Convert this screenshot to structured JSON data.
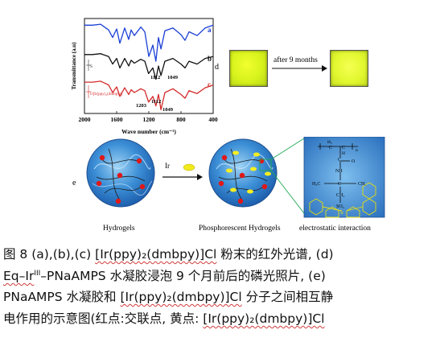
{
  "ir_chart": {
    "ylabel": "Transmittance (a.u)",
    "xlabel": "Wave number (cm⁻¹)",
    "x_ticks": [
      "2000",
      "1600",
      "1200",
      "800",
      "400"
    ],
    "curve_labels": [
      "a",
      "b",
      "c"
    ],
    "peak_labels": [
      "1112",
      "1049",
      "1203",
      "1112",
      "1049"
    ],
    "colors": {
      "a": "#1a3fd6",
      "b": "#111111",
      "c": "#d42a2a"
    },
    "structure_label_b": "S",
    "structure_label_c": "O[Ir(ppy)₂(dmbpy)]"
  },
  "chart_data": {
    "type": "line",
    "title": "",
    "xlabel": "Wave number (cm⁻¹)",
    "ylabel": "Transmittance (a.u)",
    "xlim": [
      2000,
      400
    ],
    "series": [
      {
        "name": "a",
        "x": [
          2000,
          1900,
          1800,
          1700,
          1650,
          1600,
          1560,
          1500,
          1450,
          1420,
          1380,
          1300,
          1250,
          1200,
          1150,
          1112,
          1080,
          1049,
          1000,
          900,
          800,
          750,
          700,
          600,
          500,
          400
        ],
        "y": [
          0.93,
          0.93,
          0.94,
          0.88,
          0.8,
          0.89,
          0.74,
          0.9,
          0.78,
          0.88,
          0.82,
          0.91,
          0.86,
          0.6,
          0.72,
          0.55,
          0.8,
          0.68,
          0.87,
          0.9,
          0.83,
          0.77,
          0.86,
          0.82,
          0.9,
          0.93
        ]
      },
      {
        "name": "b",
        "x": [
          2000,
          1900,
          1800,
          1700,
          1650,
          1600,
          1560,
          1500,
          1450,
          1420,
          1380,
          1300,
          1250,
          1203,
          1150,
          1112,
          1080,
          1049,
          1000,
          900,
          800,
          750,
          700,
          600,
          500,
          400
        ],
        "y": [
          0.62,
          0.62,
          0.63,
          0.6,
          0.52,
          0.58,
          0.48,
          0.58,
          0.5,
          0.56,
          0.53,
          0.57,
          0.55,
          0.42,
          0.48,
          0.36,
          0.5,
          0.4,
          0.55,
          0.58,
          0.52,
          0.48,
          0.55,
          0.52,
          0.58,
          0.6
        ]
      },
      {
        "name": "c",
        "x": [
          2000,
          1900,
          1800,
          1700,
          1650,
          1600,
          1560,
          1500,
          1450,
          1420,
          1380,
          1300,
          1250,
          1203,
          1150,
          1112,
          1080,
          1049,
          1000,
          900,
          800,
          750,
          700,
          600,
          500,
          400
        ],
        "y": [
          0.33,
          0.33,
          0.34,
          0.3,
          0.22,
          0.28,
          0.18,
          0.27,
          0.2,
          0.25,
          0.22,
          0.26,
          0.24,
          0.12,
          0.18,
          0.08,
          0.2,
          0.04,
          0.22,
          0.26,
          0.2,
          0.16,
          0.24,
          0.21,
          0.27,
          0.3
        ]
      }
    ]
  },
  "panel_d": {
    "label": "d",
    "arrow_text": "after 9 months"
  },
  "panel_e": {
    "label": "e",
    "caption_left": "Hydrogels",
    "caption_right": "Phosphorescent Hydrogels",
    "caption_struct": "electrostatic interaction",
    "ir_label": "Ir",
    "struct_labels": [
      "H₂",
      "C",
      "C",
      "n",
      "H",
      "C",
      "O",
      "NH",
      "H₃C",
      "C",
      "CH₃",
      "CH₂",
      "SO₃"
    ],
    "ir_center": "Ir"
  },
  "caption": {
    "line1_a": "图 8 (a),(b),(c) ",
    "line1_b": "[Ir(ppy)₂(dmbpy)]Cl",
    "line1_c": " 粉末的红外光谱, (d)",
    "line2_a": "Eq–Ir",
    "line2_sup": "III",
    "line2_b": "–PNaAMPS 水凝胶浸泡 9 个月前后的磷光照片, (e)",
    "line3_a": "PNaAMPS 水凝胶和 ",
    "line3_b": "[Ir(ppy)₂(dmbpy)]Cl",
    "line3_c": " 分子之间相互静",
    "line4_a": "电作用的示意图(红点:交联点, 黄点: ",
    "line4_b": "[Ir(ppy)₂(dmbpy)]Cl"
  }
}
